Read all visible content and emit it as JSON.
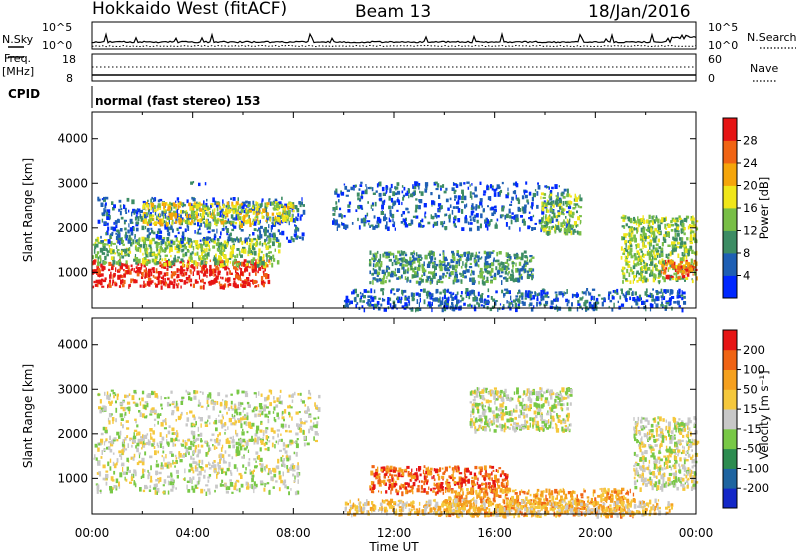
{
  "header": {
    "radar": "Hokkaido West (fitACF)",
    "beam": "Beam 13",
    "date": "18/Jan/2016"
  },
  "noise_panel": {
    "left_label": "N.Sky",
    "right_label": "N.Search",
    "ticks_left": [
      "10^5",
      "10^0"
    ],
    "ticks_right": [
      "10^5",
      "10^0"
    ]
  },
  "freq_panel": {
    "left_label_1": "Freq.",
    "left_label_2": "[MHz]",
    "right_label": "Nave",
    "ticks_left": [
      "18",
      "8"
    ],
    "ticks_right": [
      "60",
      "0"
    ]
  },
  "cpid_panel": {
    "left_label": "CPID",
    "mode_text": "normal (fast stereo) 153"
  },
  "chart_data": [
    {
      "type": "heatmap",
      "name": "power",
      "ylabel": "Slant Range [km]",
      "ylim": [
        200,
        4600
      ],
      "yticks": [
        "1000",
        "2000",
        "3000",
        "4000"
      ],
      "xticks": [
        "00:00",
        "04:00",
        "08:00",
        "12:00",
        "16:00",
        "20:00",
        "00:00"
      ],
      "xlim_hours": [
        0,
        24
      ],
      "colorbar": {
        "label": "Power [dB]",
        "ticks": [
          "4",
          "8",
          "12",
          "16",
          "20",
          "24",
          "28"
        ],
        "colors": [
          "#0028ff",
          "#1e5fb4",
          "#3c8c64",
          "#78be46",
          "#f0e619",
          "#f5a50a",
          "#f06414",
          "#e61414"
        ]
      },
      "regions": [
        {
          "t0": 0.0,
          "t1": 7.0,
          "r0": 700,
          "r1": 1300,
          "level": 7
        },
        {
          "t0": 0.0,
          "t1": 7.4,
          "r0": 1200,
          "r1": 1800,
          "level": 3
        },
        {
          "t0": 0.2,
          "t1": 8.4,
          "r0": 1700,
          "r1": 2700,
          "level": 1
        },
        {
          "t0": 2.0,
          "t1": 8.0,
          "r0": 2100,
          "r1": 2600,
          "level": 4
        },
        {
          "t0": 9.5,
          "t1": 19.0,
          "r0": 2000,
          "r1": 3050,
          "level": 1
        },
        {
          "t0": 11.0,
          "t1": 17.5,
          "r0": 800,
          "r1": 1500,
          "level": 2
        },
        {
          "t0": 10.0,
          "t1": 23.5,
          "r0": 200,
          "r1": 650,
          "level": 1
        },
        {
          "t0": 21.0,
          "t1": 24.0,
          "r0": 800,
          "r1": 2300,
          "level": 3
        },
        {
          "t0": 22.6,
          "t1": 24.0,
          "r0": 900,
          "r1": 1300,
          "level": 6
        },
        {
          "t0": 3.8,
          "t1": 4.6,
          "r0": 3000,
          "r1": 3050,
          "level": 1
        },
        {
          "t0": 17.8,
          "t1": 19.4,
          "r0": 1900,
          "r1": 2800,
          "level": 3
        }
      ]
    },
    {
      "type": "heatmap",
      "name": "velocity",
      "ylabel": "Slant Range [km]",
      "ylim": [
        200,
        4600
      ],
      "yticks": [
        "1000",
        "2000",
        "3000",
        "4000"
      ],
      "xticks": [
        "00:00",
        "04:00",
        "08:00",
        "12:00",
        "16:00",
        "20:00",
        "00:00"
      ],
      "xlim_hours": [
        0,
        24
      ],
      "xlabel": "Time UT",
      "colorbar": {
        "label": "Velocity [m s⁻¹]",
        "ticks": [
          "200",
          "100",
          "50",
          "15",
          "-15",
          "-50",
          "-100",
          "-200"
        ],
        "colors": [
          "#1428c8",
          "#1e64a0",
          "#2d8c50",
          "#78c846",
          "#c8c8c8",
          "#f5c83c",
          "#f5a01e",
          "#f06414",
          "#e61414"
        ]
      },
      "regions": [
        {
          "t0": 0.0,
          "t1": 8.2,
          "r0": 700,
          "r1": 1900,
          "level": 4
        },
        {
          "t0": 0.2,
          "t1": 9.0,
          "r0": 1800,
          "r1": 3000,
          "level": 4
        },
        {
          "t0": 11.0,
          "t1": 16.5,
          "r0": 700,
          "r1": 1300,
          "level": 7
        },
        {
          "t0": 14.0,
          "t1": 21.5,
          "r0": 200,
          "r1": 800,
          "level": 6
        },
        {
          "t0": 15.0,
          "t1": 19.0,
          "r0": 2100,
          "r1": 3050,
          "level": 4
        },
        {
          "t0": 21.5,
          "t1": 24.0,
          "r0": 800,
          "r1": 2400,
          "level": 4
        },
        {
          "t0": 10.0,
          "t1": 23.0,
          "r0": 200,
          "r1": 550,
          "level": 5
        }
      ]
    }
  ]
}
